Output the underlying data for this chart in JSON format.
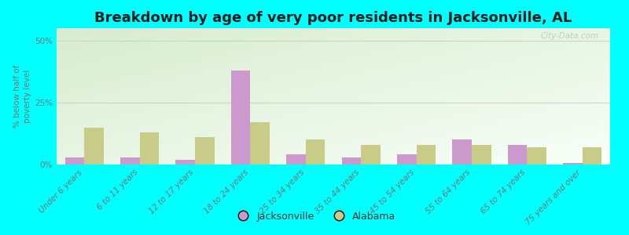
{
  "categories": [
    "Under 6 years",
    "6 to 11 years",
    "12 to 17 years",
    "18 to 24 years",
    "25 to 34 years",
    "35 to 44 years",
    "45 to 54 years",
    "55 to 64 years",
    "65 to 74 years",
    "75 years and over"
  ],
  "jacksonville": [
    3.0,
    3.0,
    2.0,
    38.0,
    4.0,
    3.0,
    4.0,
    10.0,
    8.0,
    0.5
  ],
  "alabama": [
    15.0,
    13.0,
    11.0,
    17.0,
    10.0,
    8.0,
    8.0,
    8.0,
    7.0,
    7.0
  ],
  "jacksonville_color": "#cc99cc",
  "alabama_color": "#c8cc88",
  "title": "Breakdown by age of very poor residents in Jacksonville, AL",
  "ylabel": "% below half of\npoverty level",
  "ylim": [
    0,
    55
  ],
  "yticks": [
    0,
    25,
    50
  ],
  "ytick_labels": [
    "0%",
    "25%",
    "50%"
  ],
  "background_color": "#00ffff",
  "plot_bg_topleft": "#d8ecd0",
  "plot_bg_bottomright": "#f4faf0",
  "grid_color": "#c8d8b8",
  "bar_width": 0.35,
  "title_fontsize": 13,
  "label_fontsize": 7.5,
  "watermark": "City-Data.com"
}
